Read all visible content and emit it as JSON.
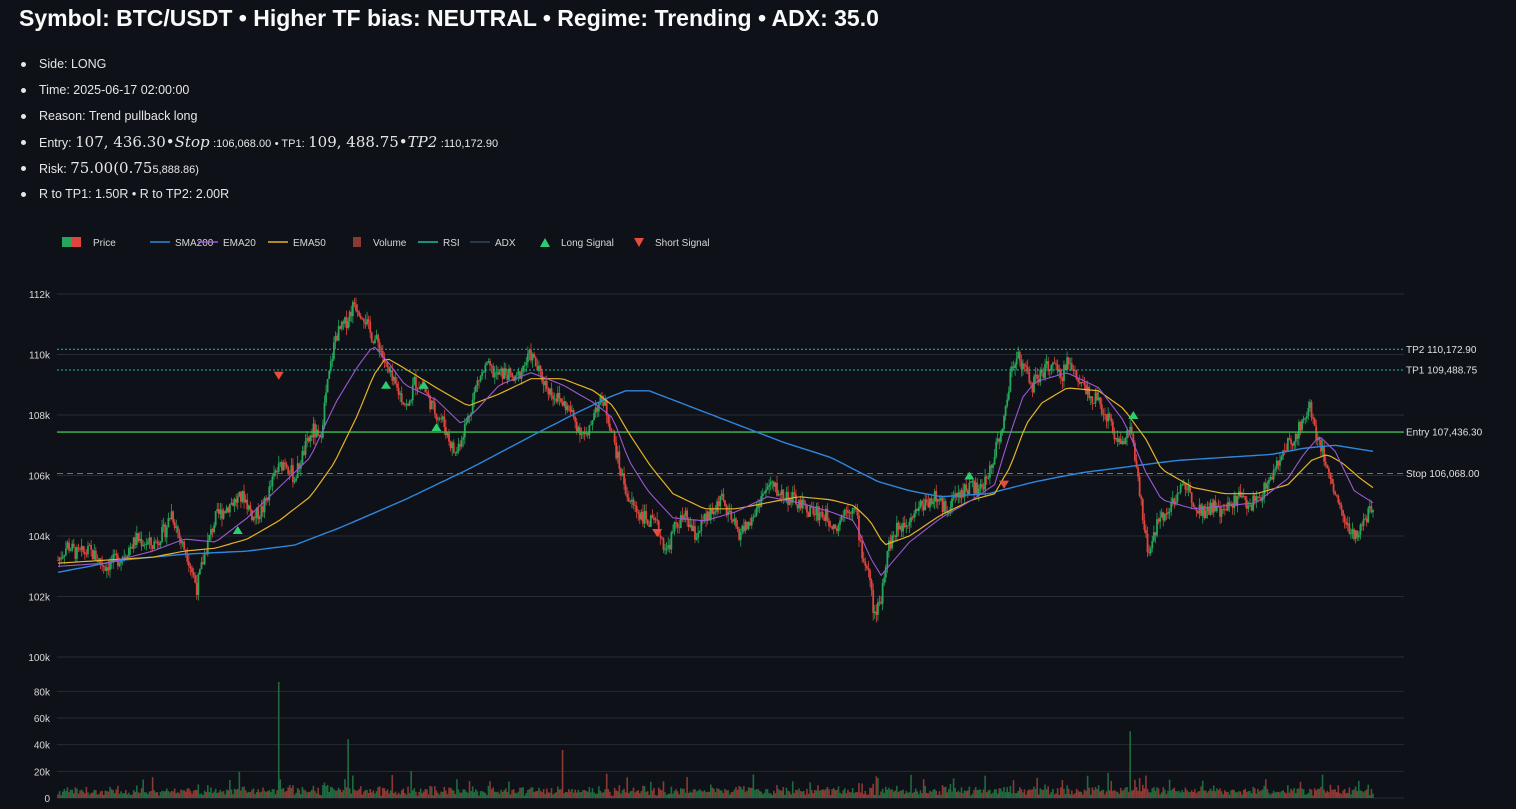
{
  "header": {
    "title": "Symbol: BTC/USDT • Higher TF bias: NEUTRAL • Regime: Trending • ADX: 35.0"
  },
  "details": {
    "side_label": "Side:",
    "side": "LONG",
    "time_label": "Time:",
    "time": "2025-06-17 02:00:00",
    "reason_label": "Reason:",
    "reason": "Trend pullback long",
    "entry_label": "Entry:",
    "entry_math_value": "107, 436.30",
    "entry_math_sep": "•",
    "entry_math_stop": "Stop",
    "entry_stop_value": ":106,068.00",
    "entry_tp1": "• TP1:",
    "entry_math_tp1": "109, 488.75",
    "entry_math_tp2": "TP2",
    "entry_tp2_value": ":110,172.90",
    "risk_label": "Risk:",
    "risk_math": "75.00(0.75",
    "risk_tail": "5,888.86)",
    "r_text": "R to TP1: 1.50R • R to TP2: 2.00R"
  },
  "chart_data": {
    "type": "line",
    "legend": [
      "Price",
      "SMA200",
      "EMA20",
      "EMA50",
      "Volume",
      "RSI",
      "ADX",
      "Long Signal",
      "Short Signal"
    ],
    "colors": {
      "up": "#26a65b",
      "down": "#e0443d",
      "sma200": "#2e86de",
      "ema20": "#9b59d0",
      "ema50": "#e5b325",
      "rsi": "#1abc9c",
      "adx": "#34495e",
      "long_signal": "#2ecc71",
      "short_signal": "#e74c3c",
      "entry": "#3fbf4f",
      "stop": "#e0443d",
      "tp": "#1abc9c",
      "grid": "#262c36"
    },
    "price_axis": {
      "ticks": [
        100000,
        102000,
        104000,
        106000,
        108000,
        110000,
        112000
      ],
      "tick_labels": [
        "100k",
        "102k",
        "104k",
        "106k",
        "108k",
        "110k",
        "112k"
      ],
      "ylim": [
        100000,
        112200
      ]
    },
    "volume_axis": {
      "ticks": [
        0,
        20000,
        40000,
        60000,
        80000
      ],
      "tick_labels": [
        "0",
        "20k",
        "40k",
        "60k",
        "80k"
      ],
      "ylim": [
        0,
        90000
      ]
    },
    "levels": [
      {
        "name": "TP2",
        "value": 110172.9,
        "label": "TP2 110,172.90",
        "style": "dotted"
      },
      {
        "name": "TP1",
        "value": 109488.75,
        "label": "TP1 109,488.75",
        "style": "dotted"
      },
      {
        "name": "Entry",
        "value": 107436.3,
        "label": "Entry 107,436.30",
        "style": "solid"
      },
      {
        "name": "Stop",
        "value": 106068.0,
        "label": "Stop 106,068.00",
        "style": "dashed"
      }
    ],
    "close_path": [
      [
        0,
        103200
      ],
      [
        6,
        103700
      ],
      [
        12,
        103400
      ],
      [
        20,
        103500
      ],
      [
        30,
        103000
      ],
      [
        40,
        103300
      ],
      [
        50,
        103900
      ],
      [
        60,
        103700
      ],
      [
        68,
        104200
      ],
      [
        72,
        104800
      ],
      [
        78,
        103800
      ],
      [
        82,
        103400
      ],
      [
        88,
        102300
      ],
      [
        94,
        103600
      ],
      [
        100,
        104600
      ],
      [
        110,
        105100
      ],
      [
        118,
        105300
      ],
      [
        124,
        104600
      ],
      [
        130,
        104900
      ],
      [
        138,
        106100
      ],
      [
        144,
        106500
      ],
      [
        150,
        105900
      ],
      [
        156,
        106800
      ],
      [
        162,
        107500
      ],
      [
        166,
        107100
      ],
      [
        170,
        108700
      ],
      [
        176,
        110600
      ],
      [
        182,
        111000
      ],
      [
        188,
        111700
      ],
      [
        194,
        111300
      ],
      [
        198,
        110700
      ],
      [
        204,
        110300
      ],
      [
        208,
        109600
      ],
      [
        212,
        109100
      ],
      [
        218,
        108600
      ],
      [
        222,
        108200
      ],
      [
        226,
        109100
      ],
      [
        232,
        108900
      ],
      [
        238,
        108200
      ],
      [
        244,
        107800
      ],
      [
        248,
        107200
      ],
      [
        252,
        106700
      ],
      [
        256,
        107300
      ],
      [
        260,
        107900
      ],
      [
        266,
        109100
      ],
      [
        272,
        109600
      ],
      [
        278,
        109300
      ],
      [
        284,
        109400
      ],
      [
        290,
        109100
      ],
      [
        296,
        109700
      ],
      [
        300,
        110000
      ],
      [
        306,
        109300
      ],
      [
        312,
        108800
      ],
      [
        318,
        108500
      ],
      [
        324,
        108200
      ],
      [
        330,
        107600
      ],
      [
        336,
        107200
      ],
      [
        340,
        108200
      ],
      [
        346,
        108500
      ],
      [
        352,
        107300
      ],
      [
        356,
        106300
      ],
      [
        362,
        105200
      ],
      [
        368,
        104800
      ],
      [
        374,
        104500
      ],
      [
        380,
        104300
      ],
      [
        386,
        103500
      ],
      [
        392,
        104400
      ],
      [
        398,
        104600
      ],
      [
        404,
        104000
      ],
      [
        410,
        104500
      ],
      [
        416,
        104800
      ],
      [
        420,
        105300
      ],
      [
        426,
        104600
      ],
      [
        432,
        104100
      ],
      [
        440,
        104500
      ],
      [
        446,
        105300
      ],
      [
        452,
        105700
      ],
      [
        458,
        105400
      ],
      [
        466,
        105200
      ],
      [
        474,
        104900
      ],
      [
        480,
        104800
      ],
      [
        486,
        104700
      ],
      [
        494,
        104300
      ],
      [
        500,
        105000
      ],
      [
        506,
        104800
      ],
      [
        510,
        103400
      ],
      [
        514,
        102800
      ],
      [
        518,
        101300
      ],
      [
        522,
        102000
      ],
      [
        526,
        103600
      ],
      [
        532,
        104200
      ],
      [
        538,
        104500
      ],
      [
        544,
        104900
      ],
      [
        550,
        105100
      ],
      [
        556,
        105300
      ],
      [
        562,
        104900
      ],
      [
        568,
        105200
      ],
      [
        574,
        105500
      ],
      [
        580,
        105700
      ],
      [
        584,
        105400
      ],
      [
        590,
        106000
      ],
      [
        594,
        106800
      ],
      [
        600,
        107800
      ],
      [
        604,
        109300
      ],
      [
        608,
        110100
      ],
      [
        612,
        109600
      ],
      [
        618,
        109000
      ],
      [
        624,
        109400
      ],
      [
        630,
        109700
      ],
      [
        636,
        109200
      ],
      [
        640,
        109800
      ],
      [
        646,
        109300
      ],
      [
        652,
        108900
      ],
      [
        658,
        108500
      ],
      [
        664,
        108100
      ],
      [
        670,
        107400
      ],
      [
        676,
        107000
      ],
      [
        680,
        107700
      ],
      [
        684,
        106100
      ],
      [
        688,
        104600
      ],
      [
        692,
        103300
      ],
      [
        698,
        104600
      ],
      [
        704,
        104900
      ],
      [
        710,
        105300
      ],
      [
        714,
        105800
      ],
      [
        720,
        105200
      ],
      [
        726,
        104800
      ],
      [
        732,
        105000
      ],
      [
        738,
        104700
      ],
      [
        744,
        105100
      ],
      [
        750,
        105300
      ],
      [
        756,
        105000
      ],
      [
        762,
        105300
      ],
      [
        768,
        105800
      ],
      [
        774,
        106400
      ],
      [
        780,
        107000
      ],
      [
        786,
        107400
      ],
      [
        790,
        107900
      ],
      [
        794,
        108300
      ],
      [
        798,
        107400
      ],
      [
        802,
        106800
      ],
      [
        806,
        106100
      ],
      [
        810,
        105400
      ],
      [
        814,
        104800
      ],
      [
        818,
        104300
      ],
      [
        822,
        103900
      ],
      [
        826,
        104300
      ],
      [
        830,
        104600
      ],
      [
        834,
        104900
      ]
    ],
    "sma200_path": [
      [
        0,
        102800
      ],
      [
        40,
        103200
      ],
      [
        80,
        103400
      ],
      [
        120,
        103500
      ],
      [
        150,
        103700
      ],
      [
        180,
        104300
      ],
      [
        220,
        105200
      ],
      [
        260,
        106200
      ],
      [
        300,
        107300
      ],
      [
        330,
        108100
      ],
      [
        350,
        108600
      ],
      [
        360,
        108800
      ],
      [
        375,
        108800
      ],
      [
        400,
        108300
      ],
      [
        430,
        107700
      ],
      [
        460,
        107100
      ],
      [
        490,
        106600
      ],
      [
        520,
        105800
      ],
      [
        540,
        105500
      ],
      [
        560,
        105300
      ],
      [
        590,
        105400
      ],
      [
        620,
        105800
      ],
      [
        650,
        106100
      ],
      [
        680,
        106300
      ],
      [
        710,
        106500
      ],
      [
        740,
        106600
      ],
      [
        770,
        106700
      ],
      [
        790,
        106900
      ],
      [
        810,
        107000
      ],
      [
        834,
        106800
      ]
    ],
    "ema20_path": [
      [
        0,
        103000
      ],
      [
        30,
        103100
      ],
      [
        60,
        103500
      ],
      [
        80,
        103900
      ],
      [
        100,
        103800
      ],
      [
        120,
        104600
      ],
      [
        140,
        105600
      ],
      [
        160,
        106600
      ],
      [
        176,
        108400
      ],
      [
        190,
        109600
      ],
      [
        200,
        110300
      ],
      [
        210,
        109700
      ],
      [
        220,
        109000
      ],
      [
        240,
        108500
      ],
      [
        256,
        107700
      ],
      [
        266,
        108200
      ],
      [
        280,
        109000
      ],
      [
        300,
        109400
      ],
      [
        320,
        109000
      ],
      [
        340,
        108400
      ],
      [
        352,
        107900
      ],
      [
        362,
        106500
      ],
      [
        374,
        105500
      ],
      [
        390,
        104600
      ],
      [
        410,
        104500
      ],
      [
        430,
        104800
      ],
      [
        450,
        105300
      ],
      [
        470,
        105100
      ],
      [
        490,
        104800
      ],
      [
        505,
        104500
      ],
      [
        515,
        103300
      ],
      [
        522,
        102700
      ],
      [
        540,
        103800
      ],
      [
        560,
        104600
      ],
      [
        580,
        105200
      ],
      [
        594,
        105700
      ],
      [
        604,
        107400
      ],
      [
        612,
        108600
      ],
      [
        620,
        109100
      ],
      [
        640,
        109400
      ],
      [
        660,
        108900
      ],
      [
        676,
        107800
      ],
      [
        690,
        106100
      ],
      [
        700,
        105200
      ],
      [
        720,
        104900
      ],
      [
        740,
        105000
      ],
      [
        760,
        105100
      ],
      [
        780,
        105900
      ],
      [
        790,
        106700
      ],
      [
        800,
        107300
      ],
      [
        810,
        106800
      ],
      [
        822,
        105500
      ],
      [
        834,
        105100
      ]
    ],
    "ema50_path": [
      [
        0,
        103100
      ],
      [
        30,
        103200
      ],
      [
        60,
        103300
      ],
      [
        80,
        103500
      ],
      [
        100,
        103600
      ],
      [
        120,
        103900
      ],
      [
        140,
        104500
      ],
      [
        160,
        105300
      ],
      [
        175,
        106400
      ],
      [
        190,
        108000
      ],
      [
        200,
        109300
      ],
      [
        208,
        109900
      ],
      [
        218,
        109600
      ],
      [
        240,
        108900
      ],
      [
        260,
        108300
      ],
      [
        280,
        108700
      ],
      [
        300,
        109200
      ],
      [
        320,
        109200
      ],
      [
        340,
        108800
      ],
      [
        352,
        108300
      ],
      [
        362,
        107400
      ],
      [
        376,
        106300
      ],
      [
        390,
        105400
      ],
      [
        410,
        104900
      ],
      [
        430,
        104900
      ],
      [
        450,
        105100
      ],
      [
        470,
        105300
      ],
      [
        490,
        105200
      ],
      [
        505,
        105000
      ],
      [
        515,
        104500
      ],
      [
        524,
        103700
      ],
      [
        540,
        104000
      ],
      [
        560,
        104700
      ],
      [
        580,
        105200
      ],
      [
        594,
        105400
      ],
      [
        604,
        106300
      ],
      [
        614,
        107700
      ],
      [
        624,
        108400
      ],
      [
        640,
        108900
      ],
      [
        660,
        108800
      ],
      [
        676,
        108200
      ],
      [
        690,
        107200
      ],
      [
        700,
        106200
      ],
      [
        720,
        105600
      ],
      [
        740,
        105400
      ],
      [
        760,
        105400
      ],
      [
        780,
        105700
      ],
      [
        795,
        106500
      ],
      [
        805,
        106700
      ],
      [
        815,
        106400
      ],
      [
        826,
        105900
      ],
      [
        834,
        105600
      ]
    ],
    "long_signals": [
      [
        114,
        104200
      ],
      [
        208,
        109000
      ],
      [
        232,
        109000
      ],
      [
        240,
        107600
      ],
      [
        578,
        106000
      ],
      [
        682,
        108000
      ]
    ],
    "short_signals": [
      [
        140,
        109300
      ],
      [
        380,
        104100
      ],
      [
        600,
        105700
      ]
    ],
    "volume_spikes": [
      [
        140,
        87000
      ],
      [
        184,
        44000
      ],
      [
        320,
        36000
      ],
      [
        680,
        50000
      ]
    ]
  }
}
